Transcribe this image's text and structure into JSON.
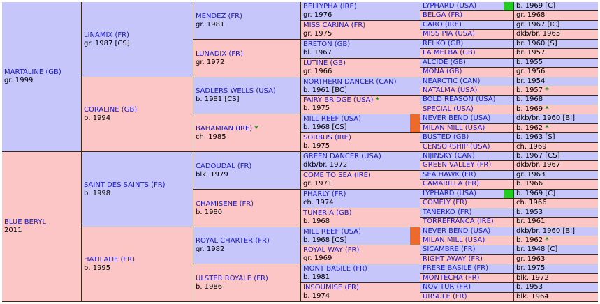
{
  "colors": {
    "male": "#c6c6fb",
    "female": "#fcc6c6",
    "link": "#1a1acc",
    "grid": "#3a2a14",
    "marker_green": "#22cc22",
    "marker_orange": "#ee6a2a",
    "star": "#118811"
  },
  "g1": [
    {
      "name": "MARTALINE (GB)",
      "info": "gr. 1999",
      "star": ""
    },
    {
      "name": "BLUE BERYL",
      "info": "2011",
      "star": ""
    }
  ],
  "g2": [
    {
      "name": "LINAMIX (FR)",
      "info": "gr. 1987 [CS]",
      "star": ""
    },
    {
      "name": "CORALINE (GB)",
      "info": "b. 1994",
      "star": ""
    },
    {
      "name": "SAINT DES SAINTS (FR)",
      "info": "b. 1998",
      "star": ""
    },
    {
      "name": "HATILADE (FR)",
      "info": "b. 1995",
      "star": ""
    }
  ],
  "g3": [
    {
      "name": "MENDEZ (FR)",
      "info": "gr. 1981",
      "star": ""
    },
    {
      "name": "LUNADIX (FR)",
      "info": "gr. 1972",
      "star": ""
    },
    {
      "name": "SADLERS WELLS (USA)",
      "info": "b. 1981 [CS]",
      "star": ""
    },
    {
      "name": "BAHAMIAN (IRE)",
      "info": "ch. 1985",
      "star": "*"
    },
    {
      "name": "CADOUDAL (FR)",
      "info": "blk. 1979",
      "star": ""
    },
    {
      "name": "CHAMISENE (FR)",
      "info": "b. 1980",
      "star": ""
    },
    {
      "name": "ROYAL CHARTER (FR)",
      "info": "gr. 1982",
      "star": ""
    },
    {
      "name": "ULSTER ROYALE (FR)",
      "info": "b. 1986",
      "star": ""
    }
  ],
  "g4": [
    {
      "name": "BELLYPHA (IRE)",
      "info": "gr. 1976",
      "star": ""
    },
    {
      "name": "MISS CARINA (FR)",
      "info": "gr. 1975",
      "star": ""
    },
    {
      "name": "BRETON (GB)",
      "info": "bl. 1967",
      "star": ""
    },
    {
      "name": "LUTINE (GB)",
      "info": "gr. 1966",
      "star": ""
    },
    {
      "name": "NORTHERN DANCER (CAN)",
      "info": "b. 1961 [BC]",
      "star": ""
    },
    {
      "name": "FAIRY BRIDGE (USA)",
      "info": "b. 1975",
      "star": "*"
    },
    {
      "name": "MILL REEF (USA)",
      "info": "b. 1968 [CS]",
      "star": ""
    },
    {
      "name": "SORBUS (IRE)",
      "info": "b. 1975",
      "star": ""
    },
    {
      "name": "GREEN DANCER (USA)",
      "info": "dkb/br. 1972",
      "star": ""
    },
    {
      "name": "COME TO SEA (IRE)",
      "info": "gr. 1971",
      "star": ""
    },
    {
      "name": "PHARLY (FR)",
      "info": "ch. 1974",
      "star": ""
    },
    {
      "name": "TUNERIA (GB)",
      "info": "b. 1968",
      "star": ""
    },
    {
      "name": "MILL REEF (USA)",
      "info": "b. 1968 [CS]",
      "star": ""
    },
    {
      "name": "ROYAL WAY (FR)",
      "info": "gr. 1969",
      "star": ""
    },
    {
      "name": "MONT BASILE (FR)",
      "info": "b. 1981",
      "star": ""
    },
    {
      "name": "INSOUMISE (FR)",
      "info": "b. 1974",
      "star": ""
    }
  ],
  "g5": [
    {
      "name": "LYPHARD (USA)",
      "info": "b. 1969 [C]",
      "star": ""
    },
    {
      "name": "BELGA (FR)",
      "info": "gr. 1968",
      "star": ""
    },
    {
      "name": "CARO (IRE)",
      "info": "gr. 1967 [IC]",
      "star": ""
    },
    {
      "name": "MISS PIA (USA)",
      "info": "dkb/br. 1965",
      "star": ""
    },
    {
      "name": "RELKO (GB)",
      "info": "br. 1960 [S]",
      "star": ""
    },
    {
      "name": "LA MELBA (GB)",
      "info": "br. 1957",
      "star": ""
    },
    {
      "name": "ALCIDE (GB)",
      "info": "b. 1955",
      "star": ""
    },
    {
      "name": "MONA (GB)",
      "info": "gr. 1956",
      "star": ""
    },
    {
      "name": "NEARCTIC (CAN)",
      "info": "br. 1954",
      "star": ""
    },
    {
      "name": "NATALMA (USA)",
      "info": "b. 1957",
      "star": "*"
    },
    {
      "name": "BOLD REASON (USA)",
      "info": "b. 1968",
      "star": ""
    },
    {
      "name": "SPECIAL (USA)",
      "info": "b. 1969",
      "star": "*"
    },
    {
      "name": "NEVER BEND (USA)",
      "info": "dkb/br. 1960 [BI]",
      "star": ""
    },
    {
      "name": "MILAN MILL (USA)",
      "info": "b. 1962",
      "star": "*"
    },
    {
      "name": "BUSTED (GB)",
      "info": "b. 1963 [S]",
      "star": ""
    },
    {
      "name": "CENSORSHIP (USA)",
      "info": "ch. 1969",
      "star": ""
    },
    {
      "name": "NIJINSKY (CAN)",
      "info": "b. 1967 [CS]",
      "star": ""
    },
    {
      "name": "GREEN VALLEY (FR)",
      "info": "dkb/br. 1967",
      "star": ""
    },
    {
      "name": "SEA HAWK (FR)",
      "info": "gr. 1963",
      "star": ""
    },
    {
      "name": "CAMARILLA (FR)",
      "info": "b. 1966",
      "star": ""
    },
    {
      "name": "LYPHARD (USA)",
      "info": "b. 1969 [C]",
      "star": ""
    },
    {
      "name": "COMELY (FR)",
      "info": "ch. 1966",
      "star": ""
    },
    {
      "name": "TANERKO (FR)",
      "info": "b. 1953",
      "star": ""
    },
    {
      "name": "TORREFRANCA (IRE)",
      "info": "br. 1961",
      "star": ""
    },
    {
      "name": "NEVER BEND (USA)",
      "info": "dkb/br. 1960 [BI]",
      "star": ""
    },
    {
      "name": "MILAN MILL (USA)",
      "info": "b. 1962",
      "star": "*"
    },
    {
      "name": "SICAMBRE (FR)",
      "info": "br. 1948 [C]",
      "star": ""
    },
    {
      "name": "RIGHT AWAY (FR)",
      "info": "gr. 1963",
      "star": ""
    },
    {
      "name": "FRERE BASILE (FR)",
      "info": "br. 1975",
      "star": ""
    },
    {
      "name": "MONTECHA (FR)",
      "info": "blk. 1972",
      "star": ""
    },
    {
      "name": "NOVITUR (FR)",
      "info": "b. 1953",
      "star": ""
    },
    {
      "name": "URSULE (FR)",
      "info": "blk. 1964",
      "star": ""
    }
  ]
}
